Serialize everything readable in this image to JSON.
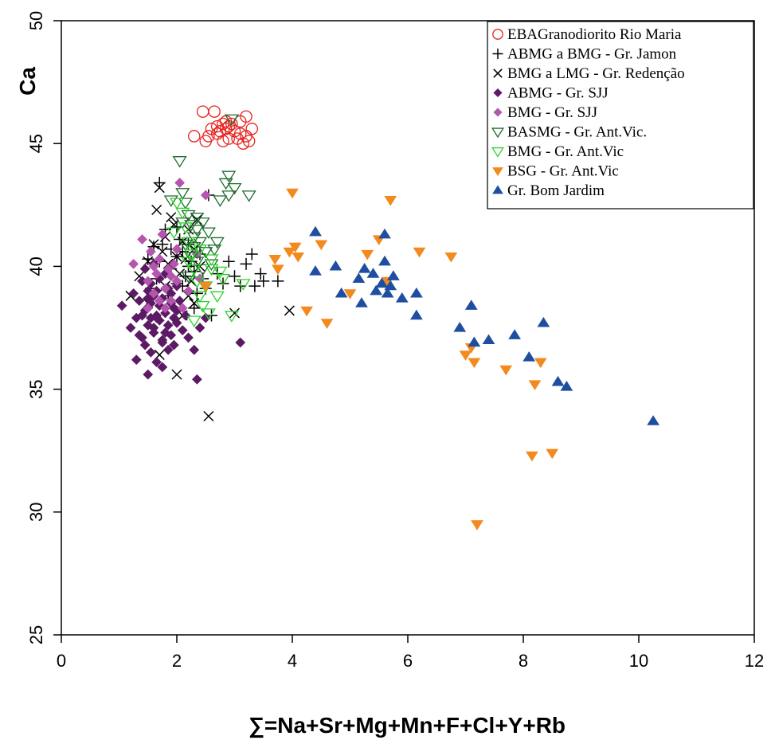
{
  "chart_data": {
    "type": "scatter",
    "title": "",
    "xlabel": "∑=Na+Sr+Mg+Mn+F+Cl+Y+Rb",
    "ylabel": "Ca",
    "xlim": [
      0,
      12
    ],
    "ylim": [
      25,
      50
    ],
    "x_ticks": [
      "0",
      "2",
      "4",
      "6",
      "8",
      "10",
      "12"
    ],
    "y_ticks": [
      "25",
      "30",
      "35",
      "40",
      "45",
      "50"
    ],
    "grid": false,
    "legend_position": "top-right",
    "series": [
      {
        "name": "EBAGranodiorito Rio Maria",
        "marker": "circle-open",
        "color": "#e8231f",
        "points": [
          [
            2.3,
            45.3
          ],
          [
            2.45,
            46.3
          ],
          [
            2.5,
            45.1
          ],
          [
            2.55,
            45.3
          ],
          [
            2.6,
            45.6
          ],
          [
            2.65,
            46.3
          ],
          [
            2.7,
            45.7
          ],
          [
            2.7,
            45.4
          ],
          [
            2.75,
            45.5
          ],
          [
            2.8,
            45.1
          ],
          [
            2.8,
            45.8
          ],
          [
            2.85,
            45.6
          ],
          [
            2.9,
            45.2
          ],
          [
            2.95,
            45.8
          ],
          [
            3.0,
            45.5
          ],
          [
            3.05,
            45.2
          ],
          [
            3.1,
            45.4
          ],
          [
            3.1,
            45.9
          ],
          [
            3.15,
            45.0
          ],
          [
            3.2,
            45.3
          ],
          [
            3.2,
            46.1
          ],
          [
            3.25,
            45.1
          ],
          [
            3.3,
            45.6
          ],
          [
            2.9,
            45.7
          ],
          [
            2.85,
            45.9
          ]
        ]
      },
      {
        "name": "ABMG a BMG - Gr. Jamon",
        "marker": "plus",
        "color": "#000000",
        "points": [
          [
            1.5,
            40.3
          ],
          [
            1.6,
            40.8
          ],
          [
            1.7,
            43.4
          ],
          [
            1.7,
            40.2
          ],
          [
            1.8,
            41.5
          ],
          [
            1.9,
            40.7
          ],
          [
            1.9,
            39.9
          ],
          [
            2.0,
            40.4
          ],
          [
            2.0,
            39.3
          ],
          [
            2.05,
            41.1
          ],
          [
            2.1,
            40.6
          ],
          [
            2.15,
            39.6
          ],
          [
            2.2,
            40.9
          ],
          [
            2.2,
            39.0
          ],
          [
            2.25,
            40.2
          ],
          [
            2.3,
            39.8
          ],
          [
            2.35,
            38.9
          ],
          [
            2.4,
            40.5
          ],
          [
            2.45,
            39.5
          ],
          [
            2.5,
            39.1
          ],
          [
            2.55,
            42.9
          ],
          [
            2.6,
            38.0
          ],
          [
            2.7,
            39.7
          ],
          [
            2.8,
            39.3
          ],
          [
            2.9,
            40.2
          ],
          [
            3.0,
            39.6
          ],
          [
            3.1,
            39.2
          ],
          [
            3.2,
            40.1
          ],
          [
            3.3,
            40.5
          ],
          [
            3.35,
            39.2
          ],
          [
            3.45,
            39.7
          ],
          [
            3.5,
            39.4
          ],
          [
            3.75,
            39.4
          ],
          [
            1.65,
            39.5
          ],
          [
            1.75,
            40.9
          ],
          [
            1.85,
            38.8
          ],
          [
            2.1,
            39.2
          ],
          [
            2.3,
            38.3
          ],
          [
            1.55,
            39.1
          ],
          [
            2.0,
            41.6
          ],
          [
            2.2,
            40.0
          ]
        ]
      },
      {
        "name": "BMG a LMG - Gr. Redenção",
        "marker": "cross",
        "color": "#000000",
        "points": [
          [
            1.2,
            38.8
          ],
          [
            1.35,
            39.6
          ],
          [
            1.5,
            40.2
          ],
          [
            1.6,
            40.9
          ],
          [
            1.65,
            42.3
          ],
          [
            1.7,
            43.2
          ],
          [
            1.75,
            40.6
          ],
          [
            1.8,
            41.2
          ],
          [
            1.85,
            40.1
          ],
          [
            1.9,
            42.0
          ],
          [
            1.95,
            41.7
          ],
          [
            2.0,
            40.4
          ],
          [
            2.05,
            39.7
          ],
          [
            2.1,
            41.0
          ],
          [
            2.15,
            40.3
          ],
          [
            2.2,
            41.5
          ],
          [
            2.25,
            39.4
          ],
          [
            2.3,
            40.7
          ],
          [
            2.35,
            41.9
          ],
          [
            2.4,
            40.0
          ],
          [
            2.0,
            35.6
          ],
          [
            2.55,
            33.9
          ],
          [
            3.0,
            38.1
          ],
          [
            3.95,
            38.2
          ],
          [
            1.7,
            36.4
          ],
          [
            2.3,
            38.5
          ],
          [
            1.5,
            38.5
          ],
          [
            1.8,
            39.2
          ],
          [
            2.1,
            38.0
          ],
          [
            2.2,
            38.8
          ]
        ]
      },
      {
        "name": "ABMG - Gr. SJJ",
        "marker": "diamond",
        "color": "#5b1a63",
        "points": [
          [
            1.05,
            38.4
          ],
          [
            1.2,
            37.5
          ],
          [
            1.25,
            38.9
          ],
          [
            1.3,
            36.2
          ],
          [
            1.3,
            37.9
          ],
          [
            1.35,
            38.6
          ],
          [
            1.4,
            37.1
          ],
          [
            1.4,
            39.4
          ],
          [
            1.45,
            36.8
          ],
          [
            1.45,
            38.2
          ],
          [
            1.5,
            35.6
          ],
          [
            1.5,
            37.6
          ],
          [
            1.5,
            39.0
          ],
          [
            1.55,
            38.5
          ],
          [
            1.55,
            36.5
          ],
          [
            1.6,
            37.3
          ],
          [
            1.6,
            38.8
          ],
          [
            1.6,
            40.1
          ],
          [
            1.65,
            37.9
          ],
          [
            1.65,
            36.1
          ],
          [
            1.7,
            38.4
          ],
          [
            1.7,
            39.5
          ],
          [
            1.75,
            37.0
          ],
          [
            1.75,
            35.9
          ],
          [
            1.8,
            38.1
          ],
          [
            1.8,
            39.7
          ],
          [
            1.85,
            37.6
          ],
          [
            1.85,
            36.6
          ],
          [
            1.9,
            38.9
          ],
          [
            1.9,
            37.2
          ],
          [
            1.95,
            38.3
          ],
          [
            1.95,
            36.8
          ],
          [
            2.0,
            37.7
          ],
          [
            2.0,
            39.2
          ],
          [
            2.05,
            38.6
          ],
          [
            2.1,
            37.4
          ],
          [
            2.15,
            38.0
          ],
          [
            2.2,
            37.1
          ],
          [
            2.3,
            36.6
          ],
          [
            2.35,
            35.4
          ],
          [
            2.4,
            37.5
          ],
          [
            2.5,
            37.9
          ],
          [
            3.1,
            36.9
          ],
          [
            1.35,
            37.2
          ],
          [
            1.45,
            39.9
          ],
          [
            1.55,
            39.3
          ],
          [
            1.65,
            38.0
          ],
          [
            1.75,
            38.7
          ],
          [
            1.85,
            39.1
          ],
          [
            1.95,
            37.9
          ],
          [
            1.4,
            38.0
          ],
          [
            1.5,
            38.7
          ],
          [
            1.6,
            37.5
          ],
          [
            1.7,
            37.8
          ],
          [
            1.8,
            37.3
          ],
          [
            1.9,
            38.5
          ],
          [
            2.0,
            38.2
          ],
          [
            1.55,
            37.9
          ],
          [
            1.65,
            39.0
          ],
          [
            1.75,
            36.9
          ]
        ]
      },
      {
        "name": "BMG - Gr. SJJ",
        "marker": "diamond",
        "color": "#b455ae",
        "points": [
          [
            1.25,
            40.1
          ],
          [
            1.4,
            41.1
          ],
          [
            1.5,
            39.4
          ],
          [
            1.55,
            40.6
          ],
          [
            1.6,
            38.9
          ],
          [
            1.65,
            39.7
          ],
          [
            1.7,
            40.3
          ],
          [
            1.75,
            41.3
          ],
          [
            1.8,
            39.1
          ],
          [
            1.85,
            39.9
          ],
          [
            1.9,
            38.6
          ],
          [
            1.95,
            40.1
          ],
          [
            2.0,
            39.4
          ],
          [
            2.05,
            43.4
          ],
          [
            2.1,
            38.3
          ],
          [
            2.2,
            39.0
          ],
          [
            2.35,
            40.5
          ],
          [
            2.5,
            42.9
          ],
          [
            2.4,
            39.5
          ],
          [
            1.5,
            38.3
          ],
          [
            1.7,
            38.6
          ],
          [
            1.9,
            39.6
          ],
          [
            2.0,
            40.7
          ],
          [
            1.6,
            40.0
          ],
          [
            1.8,
            38.3
          ]
        ]
      },
      {
        "name": "BASMG - Gr. Ant.Vic.",
        "marker": "triangle-down-open",
        "color": "#1f6b2c",
        "points": [
          [
            2.05,
            44.3
          ],
          [
            2.1,
            43.0
          ],
          [
            2.15,
            42.6
          ],
          [
            2.2,
            42.1
          ],
          [
            2.25,
            41.7
          ],
          [
            2.3,
            41.2
          ],
          [
            2.3,
            40.8
          ],
          [
            2.35,
            41.5
          ],
          [
            2.4,
            41.0
          ],
          [
            2.45,
            41.8
          ],
          [
            2.5,
            40.6
          ],
          [
            2.55,
            41.4
          ],
          [
            2.6,
            40.1
          ],
          [
            2.65,
            40.7
          ],
          [
            2.7,
            41.0
          ],
          [
            2.75,
            42.7
          ],
          [
            2.85,
            43.4
          ],
          [
            2.9,
            43.7
          ],
          [
            2.9,
            42.9
          ],
          [
            2.95,
            46.0
          ],
          [
            3.0,
            43.2
          ],
          [
            3.25,
            42.9
          ],
          [
            2.2,
            39.6
          ],
          [
            2.35,
            40.2
          ],
          [
            1.9,
            42.7
          ],
          [
            2.1,
            41.8
          ],
          [
            2.25,
            40.4
          ],
          [
            2.45,
            39.9
          ],
          [
            2.15,
            40.9
          ],
          [
            2.35,
            42.0
          ]
        ]
      },
      {
        "name": "BMG - Gr. Ant.Vic",
        "marker": "triangle-down-open",
        "color": "#2ed12b",
        "points": [
          [
            1.95,
            41.4
          ],
          [
            2.0,
            42.6
          ],
          [
            2.1,
            42.2
          ],
          [
            2.15,
            41.6
          ],
          [
            2.2,
            41.0
          ],
          [
            2.25,
            40.5
          ],
          [
            2.3,
            39.9
          ],
          [
            2.35,
            39.4
          ],
          [
            2.4,
            38.8
          ],
          [
            2.45,
            38.4
          ],
          [
            2.5,
            39.2
          ],
          [
            2.55,
            38.1
          ],
          [
            2.6,
            39.9
          ],
          [
            2.7,
            38.8
          ],
          [
            2.8,
            39.5
          ],
          [
            2.95,
            38.0
          ],
          [
            3.15,
            39.3
          ],
          [
            2.3,
            37.8
          ],
          [
            2.2,
            40.2
          ],
          [
            2.4,
            40.7
          ],
          [
            2.6,
            40.3
          ],
          [
            2.75,
            39.8
          ]
        ]
      },
      {
        "name": "BSG - Gr. Ant.Vic",
        "marker": "triangle-down",
        "color": "#f28a1e",
        "points": [
          [
            2.5,
            39.2
          ],
          [
            3.7,
            40.3
          ],
          [
            3.75,
            39.9
          ],
          [
            3.95,
            40.6
          ],
          [
            4.0,
            43.0
          ],
          [
            4.05,
            40.8
          ],
          [
            4.1,
            40.4
          ],
          [
            4.25,
            38.2
          ],
          [
            4.5,
            40.9
          ],
          [
            4.6,
            37.7
          ],
          [
            5.0,
            38.9
          ],
          [
            5.3,
            40.5
          ],
          [
            5.5,
            41.1
          ],
          [
            5.65,
            39.4
          ],
          [
            5.7,
            42.7
          ],
          [
            6.2,
            40.6
          ],
          [
            6.75,
            40.4
          ],
          [
            7.0,
            36.4
          ],
          [
            7.1,
            36.7
          ],
          [
            7.15,
            36.1
          ],
          [
            7.2,
            29.5
          ],
          [
            7.7,
            35.8
          ],
          [
            8.15,
            32.3
          ],
          [
            8.2,
            35.2
          ],
          [
            8.3,
            36.1
          ],
          [
            8.5,
            32.4
          ]
        ]
      },
      {
        "name": "Gr. Bom Jardim",
        "marker": "triangle-up",
        "color": "#1f4ea1",
        "points": [
          [
            4.4,
            41.4
          ],
          [
            4.4,
            39.8
          ],
          [
            4.75,
            40.0
          ],
          [
            4.85,
            38.9
          ],
          [
            5.15,
            39.5
          ],
          [
            5.2,
            38.5
          ],
          [
            5.25,
            39.9
          ],
          [
            5.4,
            39.7
          ],
          [
            5.45,
            39.0
          ],
          [
            5.55,
            39.3
          ],
          [
            5.6,
            41.3
          ],
          [
            5.6,
            40.2
          ],
          [
            5.65,
            38.9
          ],
          [
            5.7,
            39.2
          ],
          [
            5.75,
            39.6
          ],
          [
            5.9,
            38.7
          ],
          [
            6.15,
            38.9
          ],
          [
            6.15,
            38.0
          ],
          [
            6.9,
            37.5
          ],
          [
            7.1,
            38.4
          ],
          [
            7.15,
            36.9
          ],
          [
            7.4,
            37.0
          ],
          [
            7.85,
            37.2
          ],
          [
            8.1,
            36.3
          ],
          [
            8.35,
            37.7
          ],
          [
            8.6,
            35.3
          ],
          [
            8.75,
            35.1
          ],
          [
            10.25,
            33.7
          ]
        ]
      }
    ]
  }
}
